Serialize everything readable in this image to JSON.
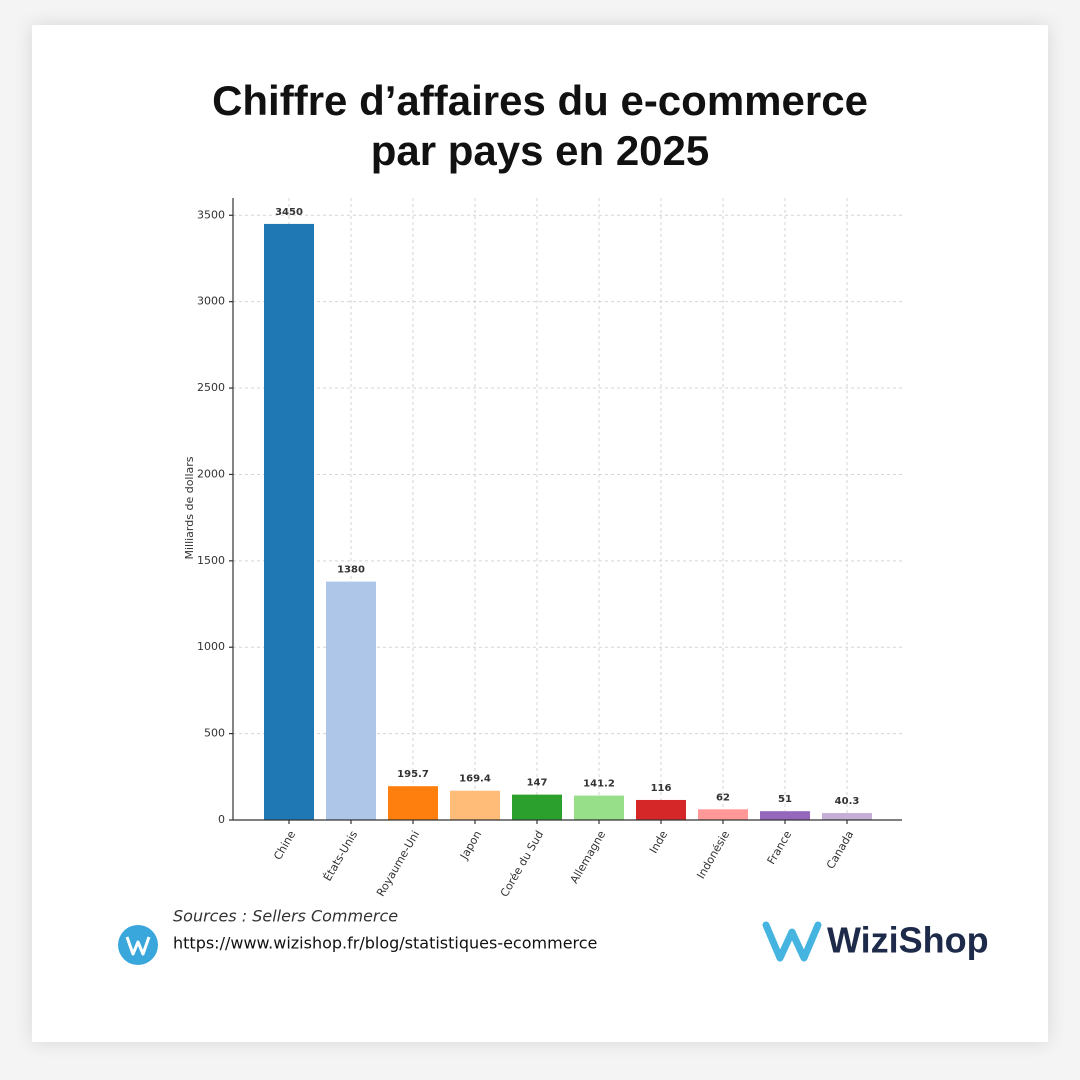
{
  "chart_data": {
    "type": "bar",
    "title": [
      "Chiffre d’affaires du e-commerce",
      "par pays en 2025"
    ],
    "y_label": "Milliards de dollars",
    "categories": [
      "Chine",
      "États-Unis",
      "Royaume-Uni",
      "Japon",
      "Corée du Sud",
      "Allemagne",
      "Inde",
      "Indonésie",
      "France",
      "Canada"
    ],
    "values": [
      3450,
      1380,
      195.7,
      169.4,
      147,
      141.2,
      116,
      62,
      51,
      40.3
    ],
    "colors": [
      "#1f77b4",
      "#aec7e8",
      "#ff7f0e",
      "#ffbb78",
      "#2ca02c",
      "#98df8a",
      "#d62728",
      "#ff9896",
      "#9467bd",
      "#c5b0d5"
    ],
    "ylim": [
      0,
      3600
    ],
    "yticks": [
      0,
      500,
      1000,
      1500,
      2000,
      2500,
      3000,
      3500
    ],
    "grid": true
  },
  "footer": {
    "source": "Sources : Sellers Commerce",
    "url": "https://www.wizishop.fr/blog/statistiques-ecommerce",
    "brand": "WiziShop"
  }
}
